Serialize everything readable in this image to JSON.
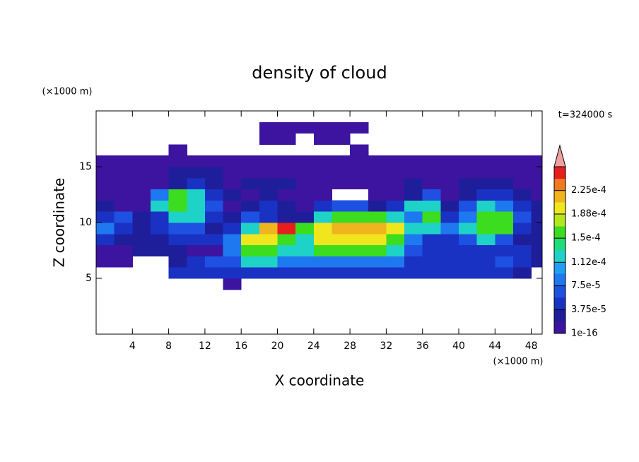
{
  "chart_data": {
    "type": "contour",
    "title": "density of cloud",
    "xlabel": "X coordinate",
    "ylabel": "Z coordinate",
    "xunit": "(×1000 m)",
    "yunit": "(×1000 m)",
    "time_label": "t=324000 s",
    "xlim": [
      0,
      49.2
    ],
    "ylim": [
      0,
      20
    ],
    "xticks": [
      4,
      8,
      12,
      16,
      20,
      24,
      28,
      32,
      36,
      40,
      44,
      48
    ],
    "yticks": [
      5,
      10,
      15
    ],
    "bins_x": [
      0,
      2,
      4,
      6,
      8,
      10,
      12,
      14,
      16,
      18,
      20,
      22,
      24,
      26,
      28,
      30,
      32,
      34,
      36,
      38,
      40,
      42,
      44,
      46,
      48,
      50
    ],
    "bins_z": [
      4,
      5,
      6,
      7,
      8,
      9,
      10,
      11,
      12,
      13,
      14,
      15,
      16,
      17,
      18,
      19
    ],
    "values": [
      [
        null,
        null,
        null,
        null,
        null,
        null,
        null,
        1e-05,
        null,
        null,
        null,
        null,
        null,
        null,
        null,
        null,
        null,
        null,
        null,
        null,
        null,
        null,
        null,
        null,
        null
      ],
      [
        null,
        null,
        null,
        null,
        5e-05,
        5e-05,
        5e-05,
        5e-05,
        5e-05,
        5e-05,
        5e-05,
        5e-05,
        5e-05,
        5e-05,
        5e-05,
        5e-05,
        5e-05,
        5e-05,
        5e-05,
        5e-05,
        5e-05,
        5e-05,
        5e-05,
        3e-05,
        null
      ],
      [
        1e-05,
        1e-05,
        null,
        null,
        3e-05,
        5e-05,
        7e-05,
        7e-05,
        0.00012,
        0.00012,
        9e-05,
        9e-05,
        9e-05,
        9e-05,
        9e-05,
        9e-05,
        9e-05,
        5e-05,
        5e-05,
        5e-05,
        5e-05,
        5e-05,
        7e-05,
        5e-05,
        3e-05
      ],
      [
        1e-05,
        1e-05,
        3e-05,
        3e-05,
        3e-05,
        1e-05,
        1e-05,
        9e-05,
        0.00016,
        0.00016,
        0.00012,
        0.00012,
        0.00016,
        0.00016,
        0.00016,
        0.00016,
        0.00012,
        7e-05,
        5e-05,
        5e-05,
        5e-05,
        5e-05,
        5e-05,
        5e-05,
        3e-05
      ],
      [
        5e-05,
        3e-05,
        3e-05,
        3e-05,
        5e-05,
        5e-05,
        5e-05,
        9e-05,
        0.0002,
        0.0002,
        0.00016,
        0.00012,
        0.0002,
        0.0002,
        0.0002,
        0.0002,
        0.00016,
        9e-05,
        5e-05,
        5e-05,
        7e-05,
        0.00012,
        7e-05,
        3e-05,
        3e-05
      ],
      [
        9e-05,
        5e-05,
        3e-05,
        5e-05,
        7e-05,
        7e-05,
        3e-05,
        5e-05,
        0.00012,
        0.00022,
        0.00025,
        0.00016,
        0.0002,
        0.00022,
        0.00022,
        0.00022,
        0.0002,
        0.00012,
        0.00012,
        9e-05,
        0.00012,
        0.00016,
        0.00016,
        5e-05,
        3e-05
      ],
      [
        5e-05,
        7e-05,
        3e-05,
        5e-05,
        0.00012,
        0.00012,
        5e-05,
        3e-05,
        7e-05,
        5e-05,
        3e-05,
        3e-05,
        0.00012,
        0.00016,
        0.00016,
        0.00016,
        0.00012,
        9e-05,
        0.00016,
        5e-05,
        9e-05,
        0.00016,
        0.00016,
        7e-05,
        3e-05
      ],
      [
        3e-05,
        1e-05,
        1e-05,
        0.00012,
        0.00016,
        0.00012,
        7e-05,
        1e-05,
        3e-05,
        5e-05,
        3e-05,
        1e-05,
        5e-05,
        7e-05,
        7e-05,
        3e-05,
        5e-05,
        0.00012,
        0.00012,
        3e-05,
        7e-05,
        0.00012,
        9e-05,
        5e-05,
        3e-05
      ],
      [
        1e-05,
        1e-05,
        1e-05,
        9e-05,
        0.00016,
        0.00012,
        5e-05,
        3e-05,
        1e-05,
        3e-05,
        1e-05,
        1e-05,
        1e-05,
        null,
        null,
        1e-05,
        1e-05,
        3e-05,
        7e-05,
        1e-05,
        3e-05,
        5e-05,
        5e-05,
        3e-05,
        1e-05
      ],
      [
        1e-05,
        1e-05,
        1e-05,
        1e-05,
        3e-05,
        5e-05,
        3e-05,
        1e-05,
        3e-05,
        3e-05,
        3e-05,
        1e-05,
        1e-05,
        1e-05,
        1e-05,
        1e-05,
        1e-05,
        3e-05,
        1e-05,
        1e-05,
        3e-05,
        3e-05,
        3e-05,
        1e-05,
        1e-05
      ],
      [
        1e-05,
        1e-05,
        1e-05,
        1e-05,
        3e-05,
        3e-05,
        3e-05,
        1e-05,
        1e-05,
        1e-05,
        1e-05,
        1e-05,
        1e-05,
        1e-05,
        1e-05,
        1e-05,
        1e-05,
        1e-05,
        1e-05,
        1e-05,
        1e-05,
        1e-05,
        1e-05,
        1e-05,
        1e-05
      ],
      [
        1e-05,
        1e-05,
        1e-05,
        1e-05,
        1e-05,
        1e-05,
        1e-05,
        1e-05,
        1e-05,
        1e-05,
        1e-05,
        1e-05,
        1e-05,
        1e-05,
        1e-05,
        1e-05,
        1e-05,
        1e-05,
        1e-05,
        1e-05,
        1e-05,
        1e-05,
        1e-05,
        1e-05,
        1e-05
      ],
      [
        null,
        null,
        null,
        null,
        1e-05,
        null,
        null,
        null,
        null,
        null,
        null,
        null,
        null,
        null,
        1e-05,
        null,
        null,
        null,
        null,
        null,
        null,
        null,
        null,
        null,
        null
      ],
      [
        null,
        null,
        null,
        null,
        null,
        null,
        null,
        null,
        null,
        1e-05,
        1e-05,
        null,
        1e-05,
        1e-05,
        null,
        null,
        null,
        null,
        null,
        null,
        null,
        null,
        null,
        null,
        null
      ],
      [
        null,
        null,
        null,
        null,
        null,
        null,
        null,
        null,
        null,
        1e-05,
        1e-05,
        1e-05,
        1e-05,
        1e-05,
        1e-05,
        null,
        null,
        null,
        null,
        null,
        null,
        null,
        null,
        null,
        null
      ]
    ],
    "clim": [
      1e-16,
      0.0002625
    ],
    "colors": [
      "#3c14a0",
      "#1e1e9b",
      "#1932c3",
      "#1e50e1",
      "#1e78f0",
      "#1ea0f0",
      "#1ed2c8",
      "#1edc78",
      "#3cdc1e",
      "#b4e61e",
      "#f0e61e",
      "#f0b41e",
      "#f0781e",
      "#e61e1e"
    ],
    "extend_color": "#f0a0a0",
    "cticks": [
      1e-16,
      {
        "value": 3.75e-05,
        "label": "3.75e-5"
      },
      {
        "value": 7.5e-05,
        "label": "7.5e-5"
      },
      {
        "value": 0.000112,
        "label": "1.12e-4"
      },
      {
        "value": 0.00015,
        "label": "1.5e-4"
      },
      {
        "value": 0.000188,
        "label": "1.88e-4"
      },
      {
        "value": 0.000225,
        "label": "2.25e-4"
      }
    ]
  }
}
